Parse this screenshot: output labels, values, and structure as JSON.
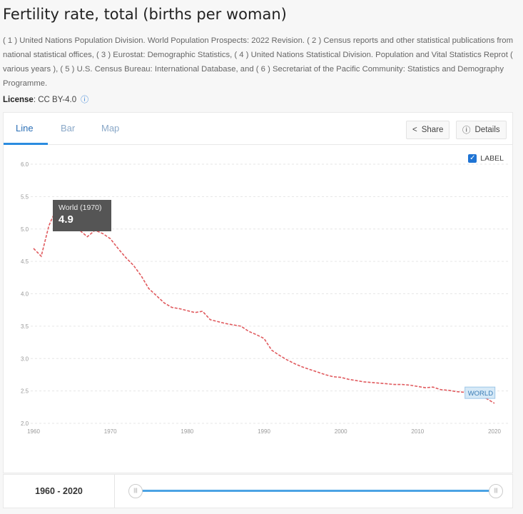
{
  "page": {
    "title": "Fertility rate, total (births per woman)",
    "sources": "( 1 ) United Nations Population Division. World Population Prospects: 2022 Revision. ( 2 ) Census reports and other statistical publications from national statistical offices, ( 3 ) Eurostat: Demographic Statistics, ( 4 ) United Nations Statistical Division. Population and Vital Statistics Reprot ( various years ), ( 5 ) U.S. Census Bureau: International Database, and ( 6 ) Secretariat of the Pacific Community: Statistics and Demography Programme.",
    "license_label": "License",
    "license_value": ": CC BY-4.0",
    "info_icon": "info-circle-icon"
  },
  "tabs": [
    "Line",
    "Bar",
    "Map"
  ],
  "toolbar": {
    "share_label": "Share",
    "details_label": "Details",
    "share_icon": "share-icon",
    "details_icon": "info-icon"
  },
  "label_toggle": {
    "label": "LABEL",
    "checked": true
  },
  "tooltip": {
    "title": "World (1970)",
    "value": "4.9"
  },
  "series_label": "WORLD",
  "range": {
    "label": "1960 - 2020",
    "start": 1960,
    "end": 2020
  },
  "colors": {
    "line": "#e05a5e",
    "accent": "#2b8ce0",
    "slider": "#4ba3e4"
  },
  "chart_data": {
    "type": "line",
    "ylim": [
      2.0,
      6.0
    ],
    "yticks": [
      "2.0",
      "2.5",
      "3.0",
      "3.5",
      "4.0",
      "4.5",
      "5.0",
      "5.5",
      "6.0"
    ],
    "xticks": [
      "1960",
      "1970",
      "1980",
      "1990",
      "2000",
      "2010",
      "2020"
    ],
    "x": [
      1960,
      1961,
      1962,
      1963,
      1964,
      1965,
      1966,
      1967,
      1968,
      1969,
      1970,
      1971,
      1972,
      1973,
      1974,
      1975,
      1976,
      1977,
      1978,
      1979,
      1980,
      1981,
      1982,
      1983,
      1984,
      1985,
      1986,
      1987,
      1988,
      1989,
      1990,
      1991,
      1992,
      1993,
      1994,
      1995,
      1996,
      1997,
      1998,
      1999,
      2000,
      2001,
      2002,
      2003,
      2004,
      2005,
      2006,
      2007,
      2008,
      2009,
      2010,
      2011,
      2012,
      2013,
      2014,
      2015,
      2016,
      2017,
      2018,
      2019,
      2020
    ],
    "series": [
      {
        "name": "WORLD",
        "values": [
          4.7,
          4.58,
          5.05,
          5.32,
          5.2,
          5.08,
          4.98,
          4.88,
          4.98,
          4.93,
          4.85,
          4.7,
          4.56,
          4.44,
          4.28,
          4.08,
          3.97,
          3.86,
          3.79,
          3.77,
          3.74,
          3.71,
          3.73,
          3.6,
          3.57,
          3.54,
          3.52,
          3.5,
          3.42,
          3.37,
          3.31,
          3.13,
          3.05,
          2.98,
          2.92,
          2.87,
          2.83,
          2.79,
          2.75,
          2.72,
          2.71,
          2.68,
          2.66,
          2.64,
          2.63,
          2.62,
          2.61,
          2.6,
          2.6,
          2.59,
          2.57,
          2.55,
          2.56,
          2.52,
          2.51,
          2.49,
          2.48,
          2.45,
          2.42,
          2.38,
          2.31
        ]
      }
    ]
  }
}
